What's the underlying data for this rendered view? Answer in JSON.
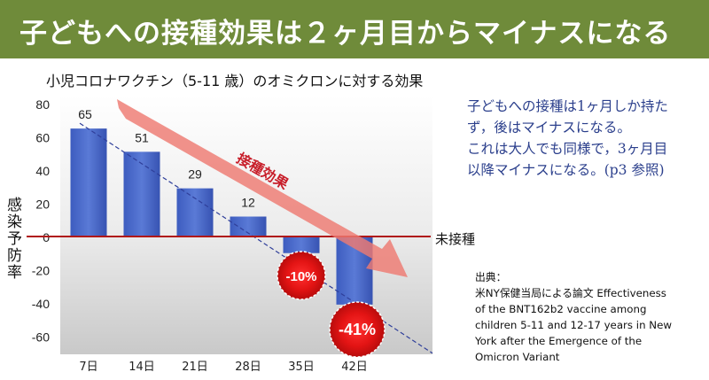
{
  "banner": {
    "title": "子どもへの接種効果は２ヶ月目からマイナスになる"
  },
  "chart_data": {
    "type": "bar",
    "title": "小児コロナワクチン（5-11 歳）のオミクロンに対する効果",
    "ylabel": "感染予防率",
    "categories": [
      "7日",
      "14日",
      "21日",
      "28日",
      "35日",
      "42日"
    ],
    "values": [
      65,
      51,
      29,
      12,
      -10,
      -41
    ],
    "data_labels": [
      "65",
      "51",
      "29",
      "12",
      "-10%",
      "-41%"
    ],
    "ylim": [
      -70,
      80
    ],
    "yticks": [
      80,
      60,
      40,
      20,
      0,
      -20,
      -40,
      -60
    ],
    "ytick_labels": [
      "80",
      "60",
      "40",
      "20",
      "0",
      "-20",
      "-40",
      "-60"
    ],
    "zero_line_label": "未接種",
    "arrow_label": "接種効果",
    "colors": {
      "bar": "#4a6ac9",
      "zero_line": "#b01818",
      "arrow": "#ee7a72",
      "badge": "#e01414",
      "trend": "#2f3f9a"
    }
  },
  "note": {
    "lines": [
      "子どもへの接種は1ヶ月しか持た",
      "ず，後はマイナスになる。",
      "これは大人でも同様で，3ヶ月目",
      "以降マイナスになる。(p3 参照)"
    ]
  },
  "source": {
    "lines": [
      "出典：",
      "米NY保健当局による論文 Effectiveness",
      "of the BNT162b2 vaccine among",
      "children 5-11 and 12-17 years in New",
      "York after the Emergence of the",
      "Omicron Variant"
    ]
  }
}
